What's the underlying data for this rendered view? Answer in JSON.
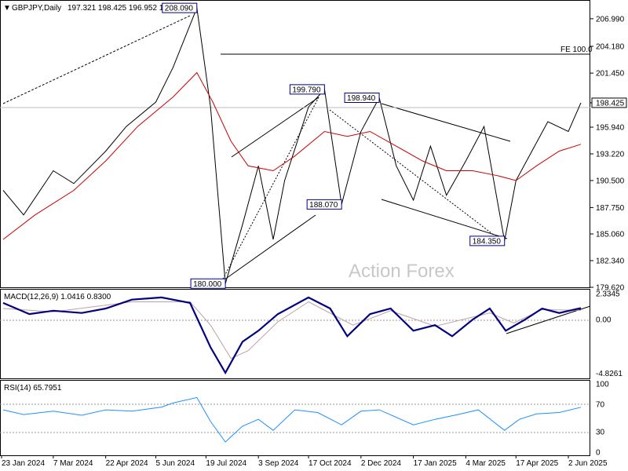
{
  "header": {
    "symbol": "GBPJPY,Daily",
    "ohlc": "197.321 198.425 196.952 198.425"
  },
  "watermark": "Action Forex",
  "colors": {
    "price": "#000000",
    "ma": "#cc0000",
    "macd": "#000080",
    "signal": "#c0a0a0",
    "rsi": "#1e90ff",
    "background": "#ffffff"
  },
  "chart_data": [
    {
      "type": "line",
      "panel": "price",
      "series": [
        {
          "name": "",
          "x": [
            "2024-01-23",
            "2024-02-10",
            "2024-03-07",
            "2024-03-25",
            "2024-04-22",
            "2024-05-10",
            "2024-06-05",
            "2024-06-20",
            "2024-07-11",
            "2024-07-23",
            "2024-08-05",
            "2024-08-20",
            "2024-09-03",
            "2024-09-16",
            "2024-09-26",
            "2024-10-17",
            "2024-10-31",
            "2024-11-15",
            "2024-12-02",
            "2024-12-18",
            "2025-01-02",
            "2025-01-17",
            "2025-02-01",
            "2025-02-15",
            "2025-03-04",
            "2025-03-20",
            "2025-04-07",
            "2025-04-17",
            "2025-05-01",
            "2025-05-15",
            "2025-06-02",
            "2025-06-13"
          ],
          "y": [
            189.5,
            187.0,
            191.5,
            190.2,
            193.5,
            196.0,
            198.5,
            202.0,
            208.09,
            198.0,
            180.0,
            186.0,
            192.0,
            184.5,
            190.5,
            198.0,
            199.79,
            188.07,
            195.5,
            198.94,
            192.0,
            188.5,
            194.0,
            189.0,
            192.5,
            196.0,
            184.35,
            190.5,
            193.5,
            196.5,
            195.5,
            198.425
          ]
        },
        {
          "name": "",
          "x": [
            "2024-01-23",
            "2024-02-20",
            "2024-03-25",
            "2024-04-22",
            "2024-05-20",
            "2024-06-20",
            "2024-07-11",
            "2024-07-25",
            "2024-08-10",
            "2024-08-25",
            "2024-09-16",
            "2024-10-05",
            "2024-10-31",
            "2024-11-20",
            "2024-12-10",
            "2025-01-02",
            "2025-01-25",
            "2025-02-15",
            "2025-03-10",
            "2025-04-01",
            "2025-04-17",
            "2025-05-05",
            "2025-05-25",
            "2025-06-13"
          ],
          "y": [
            184.5,
            187.0,
            189.5,
            192.5,
            196.0,
            199.0,
            201.5,
            198.5,
            194.5,
            192.0,
            191.5,
            193.0,
            195.5,
            195.0,
            195.5,
            194.0,
            192.5,
            191.5,
            191.5,
            191.0,
            190.5,
            192.0,
            193.5,
            194.2
          ]
        }
      ],
      "ylim": [
        179.62,
        208.82
      ],
      "yticks": [
        "206.990",
        "204.180",
        "201.450",
        "198.425",
        "195.940",
        "193.220",
        "190.500",
        "187.750",
        "185.060",
        "182.340",
        "179.620"
      ],
      "last_price_label": "198.425",
      "fe_label": "FE 100.0",
      "fe_value": 204.18,
      "annotations": [
        "208.090",
        "199.790",
        "198.940",
        "188.070",
        "184.350",
        "180.000"
      ],
      "grid": false
    },
    {
      "type": "line",
      "panel": "macd",
      "title": "MACD(12,26,9) 1.0416 0.8300",
      "series": [
        {
          "name": "",
          "x": [
            "2024-01-23",
            "2024-02-15",
            "2024-03-07",
            "2024-04-01",
            "2024-04-22",
            "2024-05-15",
            "2024-06-10",
            "2024-07-05",
            "2024-07-23",
            "2024-08-05",
            "2024-08-20",
            "2024-09-03",
            "2024-09-20",
            "2024-10-17",
            "2024-11-05",
            "2024-11-20",
            "2024-12-10",
            "2024-12-28",
            "2025-01-17",
            "2025-02-05",
            "2025-02-20",
            "2025-03-10",
            "2025-03-25",
            "2025-04-08",
            "2025-04-25",
            "2025-05-10",
            "2025-05-25",
            "2025-06-13"
          ],
          "y": [
            1.5,
            0.5,
            0.8,
            0.6,
            1.0,
            1.8,
            2.0,
            1.5,
            -2.5,
            -4.8,
            -2.0,
            -1.0,
            0.5,
            2.0,
            1.0,
            -1.5,
            0.5,
            1.0,
            -1.0,
            -0.5,
            -1.5,
            0.0,
            1.0,
            -1.0,
            0.0,
            1.0,
            0.6,
            1.0416
          ]
        },
        {
          "name": "",
          "x": [
            "2024-01-23",
            "2024-03-07",
            "2024-05-15",
            "2024-07-05",
            "2024-07-23",
            "2024-08-10",
            "2024-08-25",
            "2024-09-20",
            "2024-10-17",
            "2024-11-25",
            "2024-12-28",
            "2025-02-05",
            "2025-03-25",
            "2025-04-15",
            "2025-05-10",
            "2025-06-13"
          ],
          "y": [
            1.0,
            0.7,
            1.6,
            1.6,
            -0.5,
            -3.5,
            -2.8,
            -0.2,
            1.6,
            -0.5,
            0.8,
            -0.6,
            0.6,
            -0.3,
            0.9,
            0.83
          ]
        }
      ],
      "ylim": [
        -5.3,
        2.7
      ],
      "yticks": [
        "2.3345",
        "0.00",
        "-4.8261"
      ],
      "grid": false
    },
    {
      "type": "line",
      "panel": "rsi",
      "title": "RSI(14) 65.7951",
      "series": [
        {
          "name": "",
          "x": [
            "2024-01-23",
            "2024-02-10",
            "2024-03-07",
            "2024-04-01",
            "2024-04-22",
            "2024-05-15",
            "2024-06-10",
            "2024-06-20",
            "2024-07-11",
            "2024-07-23",
            "2024-08-05",
            "2024-08-20",
            "2024-09-03",
            "2024-09-16",
            "2024-10-05",
            "2024-10-25",
            "2024-11-15",
            "2024-12-02",
            "2024-12-18",
            "2025-01-17",
            "2025-02-05",
            "2025-02-25",
            "2025-03-15",
            "2025-04-07",
            "2025-04-20",
            "2025-05-05",
            "2025-05-25",
            "2025-06-13"
          ],
          "y": [
            62,
            55,
            60,
            54,
            62,
            60,
            66,
            72,
            80,
            45,
            15,
            38,
            48,
            32,
            62,
            58,
            40,
            60,
            62,
            40,
            48,
            55,
            62,
            32,
            48,
            56,
            58,
            65.7951
          ]
        }
      ],
      "ylim": [
        0,
        100
      ],
      "yticks": [
        "100",
        "70",
        "30",
        "0"
      ],
      "grid": false
    }
  ],
  "x_labels": [
    "23 Jan 2024",
    "7 Mar 2024",
    "22 Apr 2024",
    "5 Jun 2024",
    "19 Jul 2024",
    "3 Sep 2024",
    "17 Oct 2024",
    "2 Dec 2024",
    "17 Jan 2025",
    "4 Mar 2025",
    "17 Apr 2025",
    "2 Jun 2025"
  ]
}
